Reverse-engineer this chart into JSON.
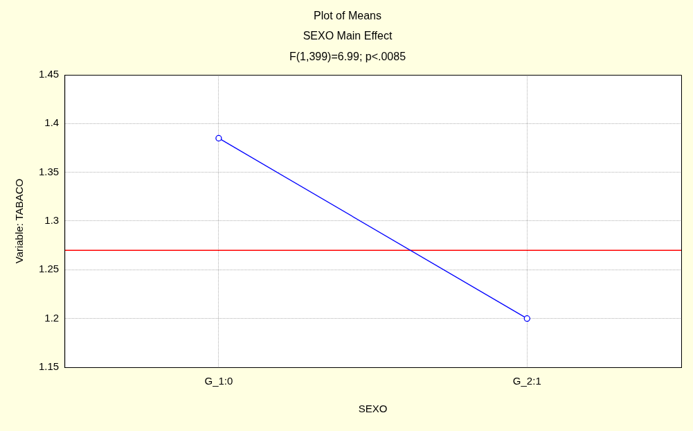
{
  "chart_data": {
    "type": "line",
    "title": "Plot of Means",
    "subtitle": "SEXO Main Effect",
    "annotations": [
      "F(1,399)=6.99; p<.0085"
    ],
    "xlabel": "SEXO",
    "ylabel": "Variable: TABACO",
    "categories": [
      "G_1:0",
      "G_2:1"
    ],
    "series": [
      {
        "color": "#0000ff",
        "values": [
          1.385,
          1.2
        ]
      }
    ],
    "ylim": [
      1.15,
      1.45
    ],
    "yticks": [
      1.15,
      1.2,
      1.25,
      1.3,
      1.35,
      1.4,
      1.45
    ],
    "ref_lines": [
      {
        "axis": "y",
        "value": 1.27,
        "color": "#ff0000"
      }
    ],
    "grid": true,
    "legend": false,
    "marker": "circle",
    "line_style": "solid"
  }
}
